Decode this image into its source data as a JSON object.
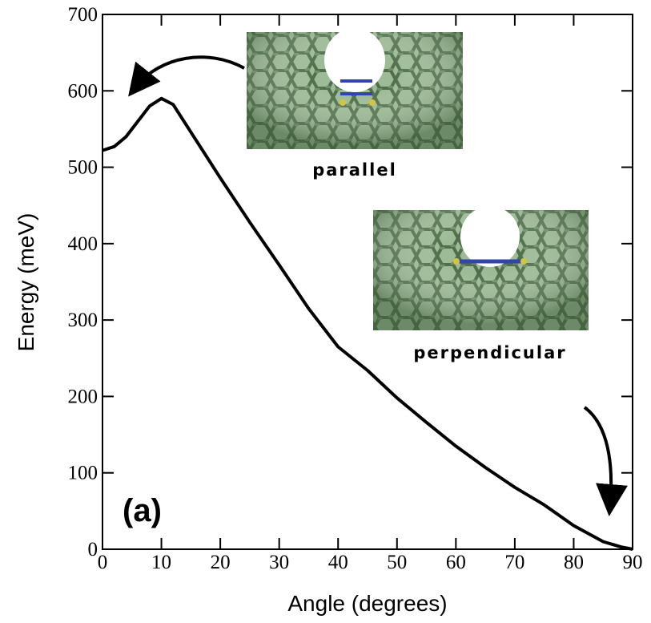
{
  "chart_data": {
    "type": "line",
    "xlabel": "Angle (degrees)",
    "ylabel": "Energy (meV)",
    "annotations": [
      "parallel",
      "perpendicular",
      "(a)"
    ],
    "x": [
      0,
      2,
      4,
      6,
      8,
      10,
      12,
      15,
      20,
      25,
      30,
      35,
      40,
      45,
      50,
      55,
      60,
      65,
      70,
      75,
      80,
      85,
      88,
      90
    ],
    "y": [
      522,
      527,
      540,
      560,
      580,
      590,
      582,
      546,
      486,
      428,
      372,
      315,
      265,
      234,
      198,
      166,
      135,
      107,
      81,
      58,
      31,
      10,
      3,
      0
    ],
    "color": "#000000",
    "xlim": [
      0,
      90
    ],
    "xticks": [
      0,
      10,
      20,
      30,
      40,
      50,
      60,
      70,
      80,
      90
    ],
    "ylim": [
      0,
      700
    ],
    "yticks": [
      0,
      100,
      200,
      300,
      400,
      500,
      600,
      700
    ]
  }
}
